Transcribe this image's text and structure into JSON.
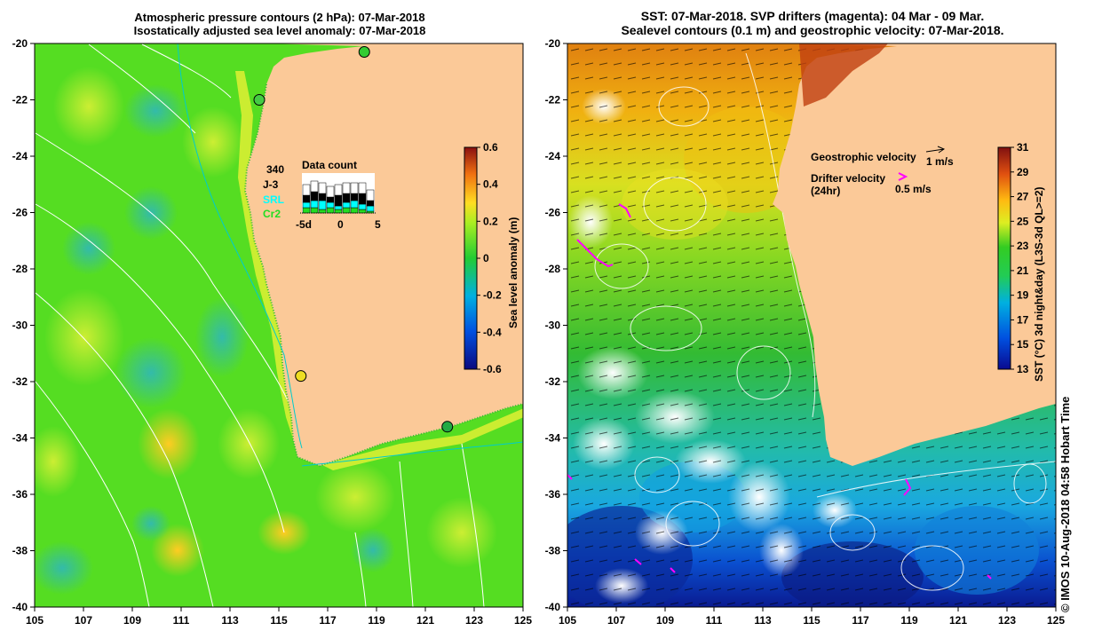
{
  "left_panel": {
    "title_line1": "Atmospheric pressure contours (2 hPa): 07-Mar-2018",
    "title_line2": "Isostatically adjusted sea level anomaly: 07-Mar-2018",
    "colorbar": {
      "label": "Sea level anomaly (m)",
      "ticks": [
        "0.6",
        "0.4",
        "0.2",
        "0",
        "-0.2",
        "-0.4",
        "-0.6"
      ]
    },
    "data_count": {
      "title": "Data count",
      "total": "340",
      "sources": [
        {
          "name": "J-3",
          "color": "#000000"
        },
        {
          "name": "SRL",
          "color": "#00ffff"
        },
        {
          "name": "Cr2",
          "color": "#22dd22"
        }
      ],
      "axis_ticks": [
        "-5d",
        "0",
        "5"
      ]
    },
    "tide_gauges": [
      {
        "lon": 118.5,
        "lat": -20.3,
        "color": "#33cc33"
      },
      {
        "lon": 114.2,
        "lat": -22.0,
        "color": "#44cc44"
      },
      {
        "lon": 115.9,
        "lat": -31.8,
        "color": "#eedd22"
      },
      {
        "lon": 121.9,
        "lat": -33.6,
        "color": "#22aa44"
      }
    ]
  },
  "right_panel": {
    "title_line1": "SST: 07-Mar-2018. SVP drifters (magenta): 04 Mar - 09 Mar.",
    "title_line2": "Sealevel contours (0.1 m) and geostrophic velocity: 07-Mar-2018.",
    "colorbar": {
      "label": "SST (°C) 3d night&day (L3S-3d QL>=2)",
      "ticks": [
        "31",
        "29",
        "27",
        "25",
        "23",
        "21",
        "19",
        "17",
        "15",
        "13"
      ]
    },
    "legend": {
      "geostrophic_label": "Geostrophic velocity",
      "geostrophic_scale": "1 m/s",
      "drifter_label_line1": "Drifter velocity",
      "drifter_label_line2": "(24hr)",
      "drifter_scale": "0.5 m/s",
      "drifter_color": "#ff00ff"
    }
  },
  "axes": {
    "x_ticks": [
      "105",
      "107",
      "109",
      "111",
      "113",
      "115",
      "117",
      "119",
      "121",
      "123",
      "125"
    ],
    "y_ticks": [
      "-20",
      "-22",
      "-24",
      "-26",
      "-28",
      "-30",
      "-32",
      "-34",
      "-36",
      "-38",
      "-40"
    ]
  },
  "colors": {
    "land": "#fbc998",
    "sla_base": "#55dd22",
    "coast_line": "#00cccc"
  },
  "copyright": "© IMOS 10-Aug-2018 04:58 Hobart Time"
}
